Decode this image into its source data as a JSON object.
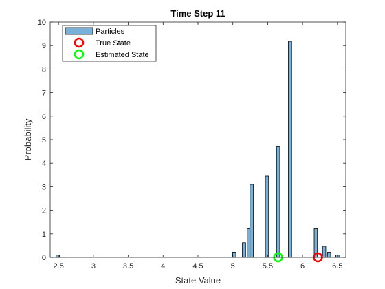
{
  "chart_data": {
    "type": "bar",
    "title": "Time Step 11",
    "xlabel": "State Value",
    "ylabel": "Probability",
    "xlim": [
      2.38,
      6.62
    ],
    "ylim": [
      0,
      10
    ],
    "xticks": [
      "2.5",
      "3",
      "3.5",
      "4",
      "4.5",
      "5",
      "5.5",
      "6",
      "6.5"
    ],
    "xtick_values": [
      2.5,
      3,
      3.5,
      4,
      4.5,
      5,
      5.5,
      6,
      6.5
    ],
    "yticks": [
      "0",
      "1",
      "2",
      "3",
      "4",
      "5",
      "6",
      "7",
      "8",
      "9",
      "10"
    ],
    "ytick_values": [
      0,
      1,
      2,
      3,
      4,
      5,
      6,
      7,
      8,
      9,
      10
    ],
    "grid": false,
    "legend_position": "top-left",
    "series": [
      {
        "name": "Particles",
        "kind": "histogram",
        "color": "#77b0d9",
        "edge_color": "#000000",
        "bin_width": 0.047,
        "bins": [
          {
            "x": 2.49,
            "value": 0.1
          },
          {
            "x": 5.02,
            "value": 0.22
          },
          {
            "x": 5.16,
            "value": 0.62
          },
          {
            "x": 5.23,
            "value": 1.22
          },
          {
            "x": 5.27,
            "value": 3.1
          },
          {
            "x": 5.49,
            "value": 3.45
          },
          {
            "x": 5.65,
            "value": 4.72
          },
          {
            "x": 5.82,
            "value": 9.18
          },
          {
            "x": 6.19,
            "value": 1.22
          },
          {
            "x": 6.31,
            "value": 0.47
          },
          {
            "x": 6.38,
            "value": 0.22
          },
          {
            "x": 6.5,
            "value": 0.1
          }
        ]
      },
      {
        "name": "True State",
        "kind": "marker",
        "color": "#ff0000",
        "points": [
          {
            "x": 6.22,
            "y": 0
          }
        ]
      },
      {
        "name": "Estimated State",
        "kind": "marker",
        "color": "#00ff00",
        "points": [
          {
            "x": 5.65,
            "y": 0
          }
        ]
      }
    ]
  }
}
